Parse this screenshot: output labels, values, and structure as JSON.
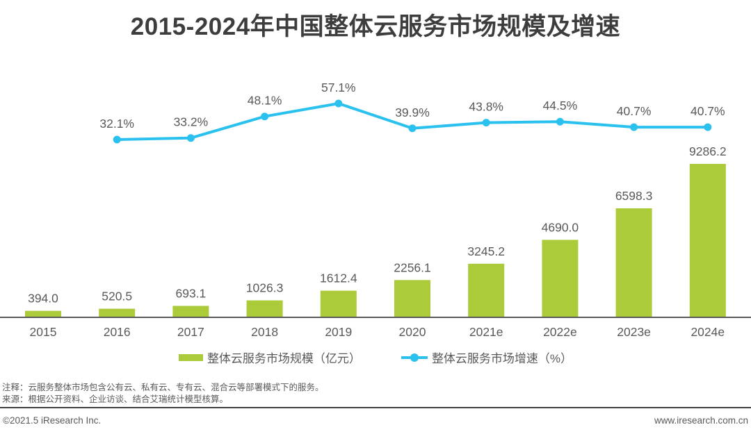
{
  "title": "2015-2024年中国整体云服务市场规模及增速",
  "chart_data": {
    "type": "bar+line",
    "categories": [
      "2015",
      "2016",
      "2017",
      "2018",
      "2019",
      "2020",
      "2021e",
      "2022e",
      "2023e",
      "2024e"
    ],
    "series": [
      {
        "name": "整体云服务市场规模（亿元）",
        "type": "bar",
        "values": [
          394.0,
          520.5,
          693.1,
          1026.3,
          1612.4,
          2256.1,
          3245.2,
          4690.0,
          6598.3,
          9286.2
        ],
        "labels": [
          "394.0",
          "520.5",
          "693.1",
          "1026.3",
          "1612.4",
          "2256.1",
          "3245.2",
          "4690.0",
          "6598.3",
          "9286.2"
        ],
        "color": "#abcb3b"
      },
      {
        "name": "整体云服务市场增速（%）",
        "type": "line",
        "values": [
          null,
          32.1,
          33.2,
          48.1,
          57.1,
          39.9,
          43.8,
          44.5,
          40.7,
          40.7
        ],
        "labels": [
          "",
          "32.1%",
          "33.2%",
          "48.1%",
          "57.1%",
          "39.9%",
          "43.8%",
          "44.5%",
          "40.7%",
          "40.7%"
        ],
        "color": "#2bc1ef"
      }
    ],
    "xlabel": "",
    "ylabel": "",
    "grid": false,
    "y_axis_shown": false,
    "legend_position": "bottom",
    "axis_color": "#595959",
    "label_color": "#595959"
  },
  "legend": {
    "bar_label": "整体云服务市场规模（亿元）",
    "line_label": "整体云服务市场增速（%）"
  },
  "notes": {
    "note_line": "注释：云服务整体市场包含公有云、私有云、专有云、混合云等部署模式下的服务。",
    "source_line": "来源：根据公开资料、企业访谈、结合艾瑞统计模型核算。"
  },
  "footer": {
    "left": "©2021.5 iResearch Inc.",
    "right": "www.iresearch.com.cn"
  },
  "colors": {
    "bar": "#abcb3b",
    "line": "#2bc1ef",
    "title_text": "#3d3d3d",
    "label_text": "#595959",
    "divider": "#3f3f3f"
  }
}
